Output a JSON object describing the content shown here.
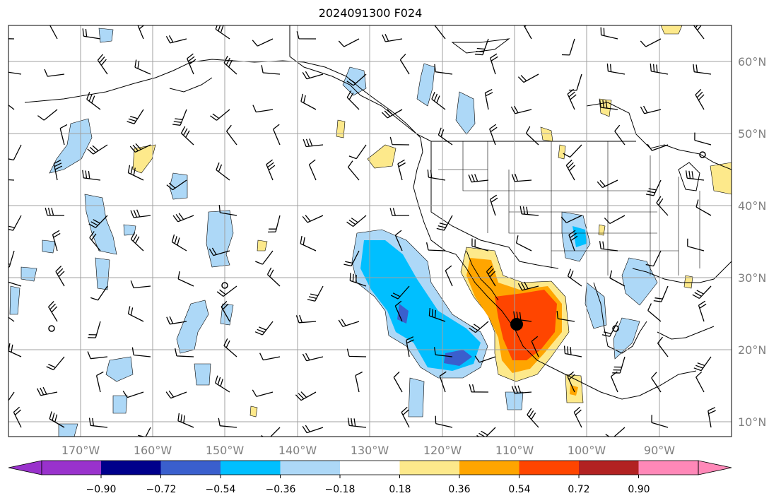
{
  "title": "2024091300 F024",
  "map": {
    "lon_range": [
      -180,
      -80
    ],
    "lat_range": [
      8,
      65
    ],
    "grid": true,
    "lon_labels": [
      "170°W",
      "160°W",
      "150°W",
      "140°W",
      "130°W",
      "120°W",
      "110°W",
      "100°W",
      "90°W"
    ],
    "lat_labels": [
      "60°N",
      "50°N",
      "40°N",
      "30°N",
      "20°N",
      "10°N"
    ],
    "storm_center_lon_lat": [
      -110.0,
      23.5
    ],
    "colors": {
      "grid": "#a0a0a0",
      "coast": "#000000",
      "label": "#808080"
    }
  },
  "colorbar": {
    "ticks": [
      "−0.90",
      "−0.72",
      "−0.54",
      "−0.36",
      "−0.18",
      "0.18",
      "0.36",
      "0.54",
      "0.72",
      "0.90"
    ],
    "colors": [
      "#9932cc",
      "#00008b",
      "#3a5fcd",
      "#00bfff",
      "#add8f7",
      "#ffffff",
      "#fde98b",
      "#ffa500",
      "#ff4500",
      "#b22222",
      "#ff88b8"
    ],
    "extend": "both"
  }
}
